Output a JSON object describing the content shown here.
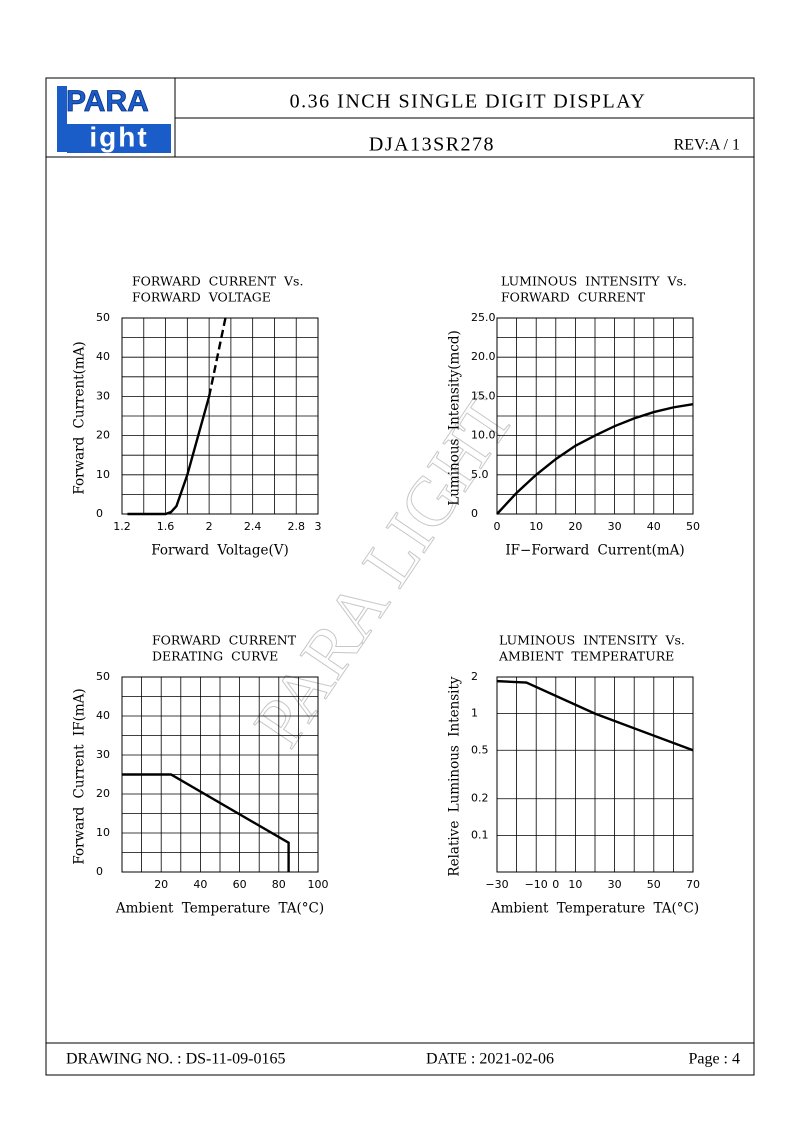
{
  "header": {
    "logo_top": "PARA",
    "logo_bottom": "ight",
    "title": "0.36 INCH SINGLE DIGIT DISPLAY",
    "part_no": "DJA13SR278",
    "rev": "REV:A / 1"
  },
  "watermark": "PARA LIGHT",
  "chart_data": [
    {
      "type": "line",
      "title_lines": [
        "FORWARD CURRENT Vs.",
        "FORWARD VOLTAGE"
      ],
      "x_label": "Forward Voltage(V)",
      "y_label": "Forward Current(mA)",
      "xlim": [
        1.2,
        3.0
      ],
      "ylim": [
        0,
        50
      ],
      "xticks": [
        1.2,
        1.6,
        2.0,
        2.4,
        2.8,
        3.0
      ],
      "yticks": [
        0,
        10,
        20,
        30,
        40,
        50
      ],
      "xgrid_step": 0.2,
      "ygrid_step": 5,
      "yscale": "linear",
      "color": "#000000",
      "series": [
        {
          "x": [
            1.25,
            1.6,
            1.65,
            1.7,
            1.8,
            1.9,
            2.0
          ],
          "values": [
            0,
            0,
            0.5,
            2,
            10,
            20,
            30
          ],
          "dashed": false
        },
        {
          "x": [
            2.0,
            2.15
          ],
          "values": [
            30,
            50
          ],
          "dashed": true
        }
      ]
    },
    {
      "type": "line",
      "title_lines": [
        "LUMINOUS INTENSITY Vs.",
        "FORWARD CURRENT"
      ],
      "x_label": "IF−Forward Current(mA)",
      "y_label": "Luminous Intensity(mcd)",
      "xlim": [
        0,
        50
      ],
      "ylim": [
        0,
        25
      ],
      "xticks": [
        0,
        10,
        20,
        30,
        40,
        50
      ],
      "yticks": [
        0,
        {
          "value": 5,
          "label": "5.0"
        },
        {
          "value": 10,
          "label": "10.0"
        },
        {
          "value": 15,
          "label": "15.0"
        },
        {
          "value": 20,
          "label": "20.0"
        },
        {
          "value": 25,
          "label": "25.0"
        }
      ],
      "xgrid_step": 5,
      "ygrid_step": 2.5,
      "yscale": "linear",
      "color": "#000000",
      "series": [
        {
          "x": [
            0,
            5,
            10,
            15,
            20,
            25,
            30,
            35,
            40,
            45,
            50
          ],
          "values": [
            0,
            2.7,
            5,
            7,
            8.7,
            10,
            11.2,
            12.2,
            13,
            13.6,
            14
          ],
          "dashed": false
        }
      ]
    },
    {
      "type": "line",
      "title_lines": [
        "FORWARD CURRENT",
        "DERATING CURVE"
      ],
      "x_label": "Ambient Temperature TA(°C)",
      "y_label": "Forward Current IF(mA)",
      "xlim": [
        0,
        100
      ],
      "ylim": [
        0,
        50
      ],
      "xticks": [
        20,
        40,
        60,
        80,
        100
      ],
      "yticks": [
        0,
        10,
        20,
        30,
        40,
        50
      ],
      "xgrid_step": 10,
      "ygrid_step": 5,
      "yscale": "linear",
      "color": "#000000",
      "series": [
        {
          "x": [
            0,
            25,
            85,
            85
          ],
          "values": [
            25,
            25,
            7.5,
            0
          ],
          "dashed": false
        }
      ]
    },
    {
      "type": "line",
      "title_lines": [
        "LUMINOUS INTENSITY Vs.",
        "AMBIENT TEMPERATURE"
      ],
      "x_label": "Ambient Temperature TA(°C)",
      "y_label": "Relative Luminous Intensity",
      "xlim": [
        -30,
        70
      ],
      "ylim": [
        0.05,
        2
      ],
      "xticks": [
        {
          "value": -30,
          "label": "−30"
        },
        {
          "value": -10,
          "label": "−10"
        },
        0,
        10,
        30,
        50,
        70
      ],
      "yticks": [
        0.1,
        0.2,
        0.5,
        1,
        2
      ],
      "xgrid_step": 10,
      "yscale": "log",
      "color": "#000000",
      "series": [
        {
          "x": [
            -30,
            -15,
            20,
            70
          ],
          "values": [
            1.85,
            1.8,
            1,
            0.5
          ],
          "dashed": false
        }
      ]
    }
  ],
  "footer": {
    "drawing_no": "DRAWING NO. : DS-11-09-0165",
    "date": "DATE : 2021-02-06",
    "page": "Page : 4"
  }
}
